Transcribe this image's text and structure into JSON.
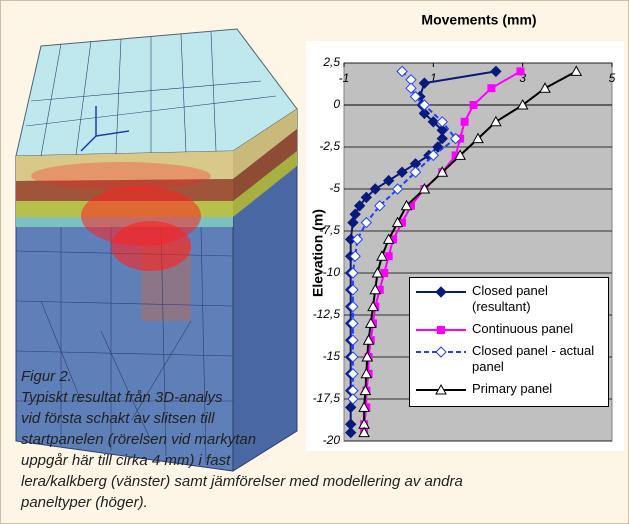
{
  "chart_data": {
    "type": "line",
    "title": "Movements (mm)",
    "y_label": "Elevation (m)",
    "xlim": [
      -1,
      5
    ],
    "xticks": [
      -1,
      1,
      3,
      5
    ],
    "ylim": [
      -20,
      2.5
    ],
    "yticks": [
      {
        "value": 2.5,
        "label": "2,5"
      },
      0,
      {
        "value": -2.5,
        "label": "-2,5"
      },
      -5,
      {
        "value": -7.5,
        "label": "-7,5"
      },
      -10,
      {
        "value": -12.5,
        "label": "-12,5"
      },
      -15,
      {
        "value": -17.5,
        "label": "-17,5"
      },
      -20
    ],
    "grid": true,
    "legend": "lower right",
    "series": [
      {
        "name": "Closed panel (resultant)",
        "color": "#0a1a7a",
        "marker": "diamond",
        "dash": false,
        "x": [
          2.4,
          0.8,
          0.7,
          0.75,
          0.8,
          1.0,
          1.2,
          1.2,
          1.1,
          0.9,
          0.6,
          0.3,
          0.0,
          -0.3,
          -0.5,
          -0.65,
          -0.75,
          -0.8,
          -0.85,
          -0.85,
          -0.85,
          -0.85,
          -0.85,
          -0.85,
          -0.85,
          -0.85,
          -0.85,
          -0.85,
          -0.85,
          -0.85,
          -0.85
        ],
        "values": [
          2,
          1.3,
          0.5,
          0,
          -0.5,
          -1,
          -1.5,
          -2,
          -2.5,
          -3,
          -3.5,
          -4,
          -4.5,
          -5,
          -5.5,
          -6,
          -6.5,
          -7,
          -8,
          -9,
          -10,
          -11,
          -12,
          -13,
          -14,
          -15,
          -16,
          -17,
          -18,
          -19,
          -19.5
        ]
      },
      {
        "name": "Continuous panel",
        "color": "#ff00ff",
        "marker": "square",
        "dash": false,
        "x": [
          2.95,
          2.3,
          1.9,
          1.7,
          1.6,
          1.5,
          1.2,
          0.8,
          0.5,
          0.3,
          0.1,
          0.0,
          -0.1,
          -0.2,
          -0.3,
          -0.35,
          -0.4,
          -0.45,
          -0.45,
          -0.5,
          -0.5,
          -0.55,
          -0.55
        ],
        "values": [
          2,
          1,
          0,
          -1,
          -2,
          -3,
          -4,
          -5,
          -6,
          -7,
          -8,
          -9,
          -10,
          -11,
          -12,
          -13,
          -14,
          -15,
          -16,
          -17,
          -18,
          -19,
          -19.5
        ]
      },
      {
        "name": "Closed panel - actual panel",
        "color": "#1f3fff",
        "marker": "diamond-open",
        "dash": true,
        "x": [
          0.3,
          0.5,
          0.5,
          0.6,
          0.8,
          1.2,
          1.5,
          1.0,
          0.6,
          0.2,
          -0.2,
          -0.5,
          -0.7,
          -0.75,
          -0.8,
          -0.8,
          -0.8,
          -0.8,
          -0.8,
          -0.8,
          -0.8,
          -0.8,
          -0.8
        ],
        "values": [
          2,
          1.5,
          1,
          0.5,
          0,
          -1,
          -2,
          -3,
          -4,
          -5,
          -6,
          -7,
          -8,
          -9,
          -10,
          -11,
          -12,
          -13,
          -14,
          -15,
          -16,
          -17,
          -17.5
        ]
      },
      {
        "name": "Primary panel",
        "color": "#000000",
        "marker": "triangle-open",
        "dash": false,
        "x": [
          4.2,
          3.5,
          3.0,
          2.4,
          2.0,
          1.6,
          1.2,
          0.8,
          0.4,
          0.2,
          0.0,
          -0.15,
          -0.25,
          -0.3,
          -0.35,
          -0.4,
          -0.45,
          -0.48,
          -0.5,
          -0.52,
          -0.55,
          -0.55,
          -0.55
        ],
        "values": [
          2,
          1,
          0,
          -1,
          -2,
          -3,
          -4,
          -5,
          -6,
          -7,
          -8,
          -9,
          -10,
          -11,
          -12,
          -13,
          -14,
          -15,
          -16,
          -17,
          -18,
          -19,
          -19.5
        ]
      }
    ]
  },
  "caption": {
    "label": "Figur 2.",
    "lines": [
      "Typiskt resultat från 3D-analys",
      "vid första schakt av slitsen till",
      "startpanelen (rörelsen vid markytan",
      "uppgår här till cirka 4 mm) i fast",
      "lera/kalkberg (vänster) samt jämförelser med modellering av andra",
      "paneltyper (höger)."
    ]
  }
}
